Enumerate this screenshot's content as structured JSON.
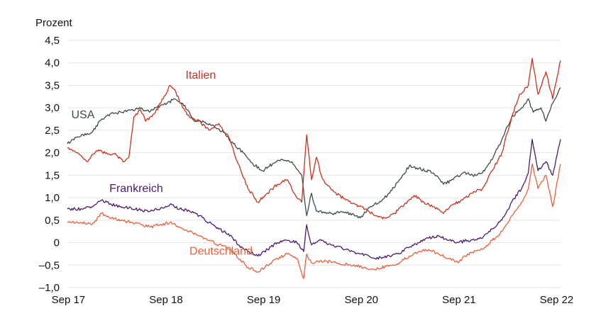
{
  "chart_data": {
    "type": "line",
    "title": "",
    "ylabel": "Prozent",
    "xlabel": "",
    "ylim": [
      -1.0,
      4.5
    ],
    "xlim": [
      2017.7,
      2022.75
    ],
    "grid": "horizontal",
    "legend": "inline labels",
    "yticks": [
      {
        "value": 4.5,
        "label": "4,5"
      },
      {
        "value": 4.0,
        "label": "4,0"
      },
      {
        "value": 3.5,
        "label": "3,5"
      },
      {
        "value": 3.0,
        "label": "3,0"
      },
      {
        "value": 2.5,
        "label": "2,5"
      },
      {
        "value": 2.0,
        "label": "2,0"
      },
      {
        "value": 1.5,
        "label": "1,5"
      },
      {
        "value": 1.0,
        "label": "1,0"
      },
      {
        "value": 0.5,
        "label": "0,5"
      },
      {
        "value": 0.0,
        "label": "0"
      },
      {
        "value": -0.5,
        "label": "–0,5"
      },
      {
        "value": -1.0,
        "label": "–1,0"
      }
    ],
    "xticks": [
      {
        "value": 2017.71,
        "label": "Sep 17"
      },
      {
        "value": 2018.71,
        "label": "Sep 18"
      },
      {
        "value": 2019.71,
        "label": "Sep 19"
      },
      {
        "value": 2020.71,
        "label": "Sep 20"
      },
      {
        "value": 2021.71,
        "label": "Sep 21"
      },
      {
        "value": 2022.71,
        "label": "Sep 22"
      }
    ],
    "series": [
      {
        "name": "USA",
        "color": "#3a4d48",
        "points": [
          [
            2017.7,
            2.2
          ],
          [
            2017.8,
            2.35
          ],
          [
            2017.95,
            2.45
          ],
          [
            2018.05,
            2.75
          ],
          [
            2018.15,
            2.88
          ],
          [
            2018.25,
            2.9
          ],
          [
            2018.35,
            2.95
          ],
          [
            2018.45,
            2.98
          ],
          [
            2018.55,
            2.92
          ],
          [
            2018.65,
            3.05
          ],
          [
            2018.72,
            3.1
          ],
          [
            2018.8,
            3.2
          ],
          [
            2018.88,
            3.1
          ],
          [
            2018.95,
            2.9
          ],
          [
            2019.0,
            2.7
          ],
          [
            2019.1,
            2.68
          ],
          [
            2019.2,
            2.6
          ],
          [
            2019.3,
            2.45
          ],
          [
            2019.4,
            2.2
          ],
          [
            2019.5,
            2.0
          ],
          [
            2019.6,
            1.75
          ],
          [
            2019.7,
            1.6
          ],
          [
            2019.8,
            1.75
          ],
          [
            2019.9,
            1.85
          ],
          [
            2020.0,
            1.8
          ],
          [
            2020.1,
            1.5
          ],
          [
            2020.15,
            0.6
          ],
          [
            2020.2,
            1.1
          ],
          [
            2020.25,
            0.7
          ],
          [
            2020.4,
            0.65
          ],
          [
            2020.55,
            0.68
          ],
          [
            2020.7,
            0.55
          ],
          [
            2020.8,
            0.8
          ],
          [
            2020.9,
            0.92
          ],
          [
            2021.0,
            1.1
          ],
          [
            2021.1,
            1.4
          ],
          [
            2021.2,
            1.7
          ],
          [
            2021.3,
            1.65
          ],
          [
            2021.45,
            1.55
          ],
          [
            2021.55,
            1.3
          ],
          [
            2021.65,
            1.4
          ],
          [
            2021.75,
            1.55
          ],
          [
            2021.85,
            1.5
          ],
          [
            2021.95,
            1.55
          ],
          [
            2022.05,
            1.85
          ],
          [
            2022.15,
            2.3
          ],
          [
            2022.25,
            2.8
          ],
          [
            2022.35,
            3.0
          ],
          [
            2022.42,
            3.2
          ],
          [
            2022.47,
            2.9
          ],
          [
            2022.55,
            3.0
          ],
          [
            2022.6,
            2.7
          ],
          [
            2022.67,
            3.1
          ],
          [
            2022.75,
            3.45
          ]
        ]
      },
      {
        "name": "Italien",
        "color": "#c8321e",
        "points": [
          [
            2017.7,
            2.1
          ],
          [
            2017.8,
            2.0
          ],
          [
            2017.9,
            1.8
          ],
          [
            2018.0,
            2.05
          ],
          [
            2018.1,
            2.0
          ],
          [
            2018.2,
            1.95
          ],
          [
            2018.28,
            1.8
          ],
          [
            2018.33,
            1.9
          ],
          [
            2018.38,
            2.8
          ],
          [
            2018.45,
            2.95
          ],
          [
            2018.5,
            2.7
          ],
          [
            2018.6,
            2.9
          ],
          [
            2018.68,
            3.2
          ],
          [
            2018.75,
            3.5
          ],
          [
            2018.8,
            3.4
          ],
          [
            2018.88,
            3.0
          ],
          [
            2018.95,
            2.8
          ],
          [
            2019.05,
            2.7
          ],
          [
            2019.15,
            2.5
          ],
          [
            2019.25,
            2.65
          ],
          [
            2019.35,
            2.35
          ],
          [
            2019.45,
            1.75
          ],
          [
            2019.55,
            1.2
          ],
          [
            2019.65,
            0.9
          ],
          [
            2019.75,
            1.1
          ],
          [
            2019.85,
            1.3
          ],
          [
            2019.95,
            1.4
          ],
          [
            2020.05,
            1.0
          ],
          [
            2020.1,
            0.9
          ],
          [
            2020.15,
            2.4
          ],
          [
            2020.2,
            1.4
          ],
          [
            2020.25,
            1.9
          ],
          [
            2020.3,
            1.5
          ],
          [
            2020.35,
            1.3
          ],
          [
            2020.45,
            1.1
          ],
          [
            2020.55,
            0.95
          ],
          [
            2020.65,
            0.85
          ],
          [
            2020.75,
            0.75
          ],
          [
            2020.85,
            0.6
          ],
          [
            2020.95,
            0.55
          ],
          [
            2021.05,
            0.65
          ],
          [
            2021.15,
            0.85
          ],
          [
            2021.25,
            1.05
          ],
          [
            2021.35,
            0.9
          ],
          [
            2021.45,
            0.8
          ],
          [
            2021.55,
            0.65
          ],
          [
            2021.65,
            0.85
          ],
          [
            2021.75,
            0.95
          ],
          [
            2021.85,
            1.1
          ],
          [
            2021.95,
            1.2
          ],
          [
            2022.05,
            1.6
          ],
          [
            2022.15,
            2.0
          ],
          [
            2022.25,
            2.8
          ],
          [
            2022.33,
            3.3
          ],
          [
            2022.42,
            3.5
          ],
          [
            2022.46,
            4.1
          ],
          [
            2022.52,
            3.3
          ],
          [
            2022.6,
            3.8
          ],
          [
            2022.67,
            3.2
          ],
          [
            2022.75,
            4.05
          ]
        ]
      },
      {
        "name": "Frankreich",
        "color": "#4a1a6e",
        "points": [
          [
            2017.7,
            0.75
          ],
          [
            2017.85,
            0.75
          ],
          [
            2017.95,
            0.8
          ],
          [
            2018.05,
            0.95
          ],
          [
            2018.15,
            0.85
          ],
          [
            2018.25,
            0.8
          ],
          [
            2018.35,
            0.78
          ],
          [
            2018.45,
            0.72
          ],
          [
            2018.55,
            0.7
          ],
          [
            2018.65,
            0.75
          ],
          [
            2018.75,
            0.85
          ],
          [
            2018.85,
            0.75
          ],
          [
            2018.95,
            0.7
          ],
          [
            2019.05,
            0.6
          ],
          [
            2019.15,
            0.45
          ],
          [
            2019.25,
            0.3
          ],
          [
            2019.35,
            0.2
          ],
          [
            2019.45,
            -0.05
          ],
          [
            2019.55,
            -0.2
          ],
          [
            2019.65,
            -0.3
          ],
          [
            2019.75,
            -0.15
          ],
          [
            2019.85,
            0.0
          ],
          [
            2019.95,
            0.05
          ],
          [
            2020.05,
            0.0
          ],
          [
            2020.12,
            -0.2
          ],
          [
            2020.15,
            0.4
          ],
          [
            2020.2,
            -0.05
          ],
          [
            2020.3,
            0.05
          ],
          [
            2020.4,
            -0.05
          ],
          [
            2020.55,
            -0.15
          ],
          [
            2020.7,
            -0.25
          ],
          [
            2020.85,
            -0.35
          ],
          [
            2021.0,
            -0.3
          ],
          [
            2021.1,
            -0.25
          ],
          [
            2021.2,
            -0.1
          ],
          [
            2021.3,
            0.0
          ],
          [
            2021.4,
            0.1
          ],
          [
            2021.5,
            0.15
          ],
          [
            2021.6,
            0.05
          ],
          [
            2021.7,
            0.0
          ],
          [
            2021.8,
            0.05
          ],
          [
            2021.95,
            0.1
          ],
          [
            2022.05,
            0.3
          ],
          [
            2022.15,
            0.5
          ],
          [
            2022.25,
            0.9
          ],
          [
            2022.35,
            1.2
          ],
          [
            2022.42,
            1.55
          ],
          [
            2022.46,
            2.3
          ],
          [
            2022.52,
            1.6
          ],
          [
            2022.6,
            1.8
          ],
          [
            2022.67,
            1.5
          ],
          [
            2022.75,
            2.3
          ]
        ]
      },
      {
        "name": "Deutschland",
        "color": "#e8603c",
        "points": [
          [
            2017.7,
            0.45
          ],
          [
            2017.85,
            0.45
          ],
          [
            2017.95,
            0.4
          ],
          [
            2018.05,
            0.65
          ],
          [
            2018.15,
            0.55
          ],
          [
            2018.25,
            0.5
          ],
          [
            2018.35,
            0.45
          ],
          [
            2018.45,
            0.4
          ],
          [
            2018.55,
            0.35
          ],
          [
            2018.65,
            0.4
          ],
          [
            2018.75,
            0.45
          ],
          [
            2018.85,
            0.35
          ],
          [
            2018.95,
            0.25
          ],
          [
            2019.05,
            0.15
          ],
          [
            2019.15,
            0.05
          ],
          [
            2019.25,
            -0.05
          ],
          [
            2019.35,
            -0.1
          ],
          [
            2019.45,
            -0.35
          ],
          [
            2019.55,
            -0.55
          ],
          [
            2019.65,
            -0.65
          ],
          [
            2019.75,
            -0.5
          ],
          [
            2019.85,
            -0.35
          ],
          [
            2019.95,
            -0.25
          ],
          [
            2020.05,
            -0.35
          ],
          [
            2020.12,
            -0.8
          ],
          [
            2020.15,
            -0.25
          ],
          [
            2020.2,
            -0.45
          ],
          [
            2020.3,
            -0.4
          ],
          [
            2020.45,
            -0.45
          ],
          [
            2020.6,
            -0.5
          ],
          [
            2020.75,
            -0.55
          ],
          [
            2020.85,
            -0.6
          ],
          [
            2021.0,
            -0.5
          ],
          [
            2021.1,
            -0.45
          ],
          [
            2021.2,
            -0.3
          ],
          [
            2021.3,
            -0.2
          ],
          [
            2021.4,
            -0.15
          ],
          [
            2021.5,
            -0.25
          ],
          [
            2021.6,
            -0.35
          ],
          [
            2021.7,
            -0.45
          ],
          [
            2021.8,
            -0.25
          ],
          [
            2021.95,
            -0.15
          ],
          [
            2022.05,
            0.05
          ],
          [
            2022.15,
            0.25
          ],
          [
            2022.25,
            0.6
          ],
          [
            2022.35,
            0.9
          ],
          [
            2022.42,
            1.2
          ],
          [
            2022.46,
            1.75
          ],
          [
            2022.52,
            1.2
          ],
          [
            2022.6,
            1.5
          ],
          [
            2022.67,
            0.8
          ],
          [
            2022.75,
            1.75
          ]
        ]
      }
    ],
    "series_labels": [
      {
        "series": "Italien",
        "text": "Italien"
      },
      {
        "series": "USA",
        "text": "USA"
      },
      {
        "series": "Frankreich",
        "text": "Frankreich"
      },
      {
        "series": "Deutschland",
        "text": "Deutschland"
      }
    ]
  }
}
